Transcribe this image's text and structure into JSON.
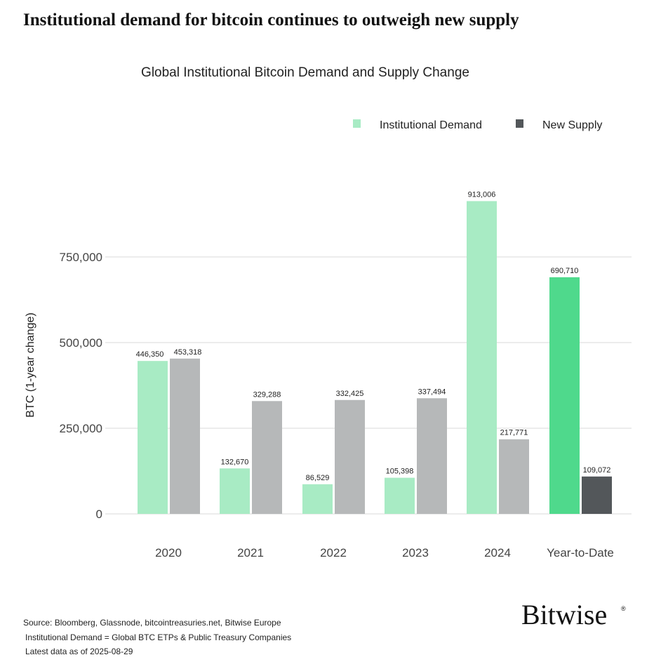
{
  "headline": "Institutional demand for bitcoin continues to outweigh new supply",
  "chart_data": {
    "type": "bar",
    "title": "Global Institutional Bitcoin Demand and Supply Change",
    "xlabel": "",
    "ylabel": "BTC (1-year change)",
    "ylim": [
      0,
      1000000
    ],
    "yticks": [
      0,
      250000,
      500000,
      750000
    ],
    "ytick_labels": [
      "0",
      "250,000",
      "500,000",
      "750,000"
    ],
    "grid": true,
    "legend_position": "top-right",
    "categories": [
      "2020",
      "2021",
      "2022",
      "2023",
      "2024",
      "Year-to-Date"
    ],
    "series": [
      {
        "name": "Institutional Demand",
        "color": "#a8ebc4",
        "highlight_color": "#4fd98c",
        "values": [
          446350,
          132670,
          86529,
          105398,
          913006,
          690710
        ],
        "labels": [
          "446,350",
          "132,670",
          "86,529",
          "105,398",
          "913,006",
          "690,710"
        ]
      },
      {
        "name": "New Supply",
        "color": "#b6b8b9",
        "highlight_color": "#53575a",
        "values": [
          453318,
          329288,
          332425,
          337494,
          217771,
          109072
        ],
        "labels": [
          "453,318",
          "329,288",
          "332,425",
          "337,494",
          "217,771",
          "109,072"
        ]
      }
    ]
  },
  "footer": {
    "source": "Source: Bloomberg, Glassnode, bitcointreasuries.net, Bitwise Europe",
    "definition": "Institutional Demand = Global BTC ETPs & Public Treasury Companies",
    "latest": "Latest data as of 2025-08-29"
  },
  "logo": "Bitwise"
}
